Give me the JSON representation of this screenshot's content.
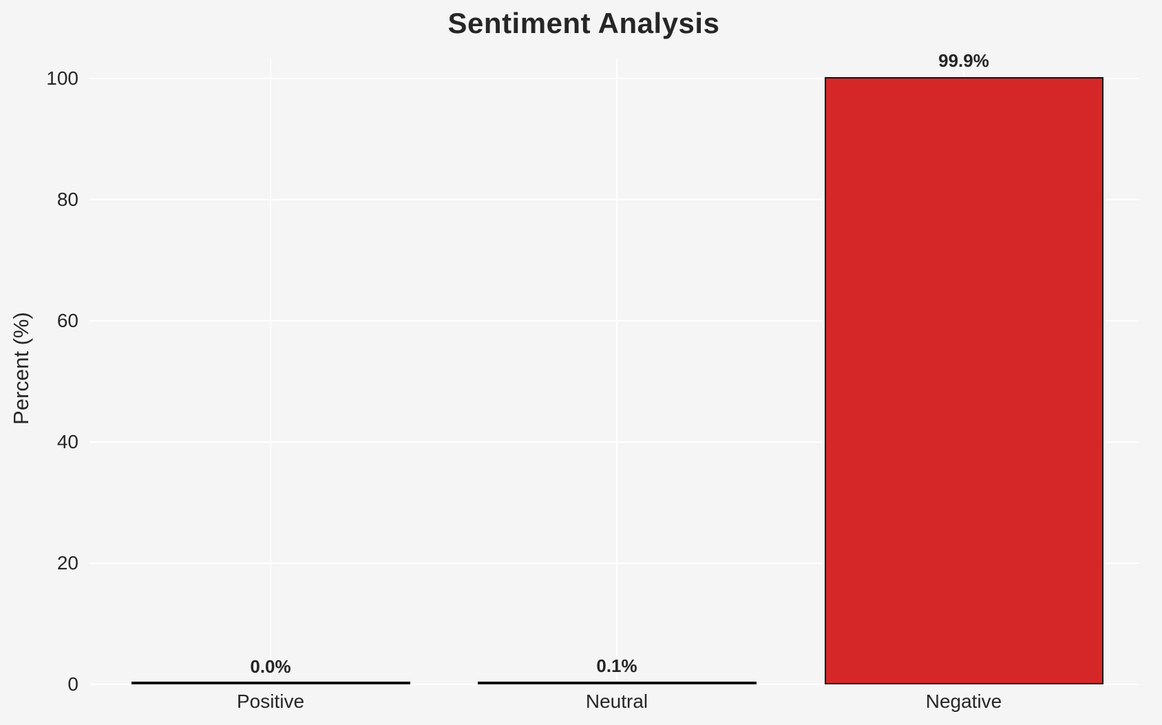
{
  "figure": {
    "background_color": "#f5f5f6",
    "grid_color": "#ffffff",
    "text_color": "#262626",
    "bar_edge_color": "#111111"
  },
  "chart_data": {
    "type": "bar",
    "title": "Sentiment Analysis",
    "xlabel": "",
    "ylabel": "Percent (%)",
    "categories": [
      "Positive",
      "Neutral",
      "Negative"
    ],
    "values": [
      0.0,
      0.1,
      99.9
    ],
    "bar_labels": [
      "0.0%",
      "0.1%",
      "99.9%"
    ],
    "bar_colors": [
      null,
      null,
      "#d62728"
    ],
    "yticks": [
      0,
      20,
      40,
      60,
      80,
      100
    ],
    "ytick_labels": [
      "0",
      "20",
      "40",
      "60",
      "80",
      "100"
    ],
    "ylim": [
      0,
      104
    ],
    "grid": true,
    "legend": null
  }
}
